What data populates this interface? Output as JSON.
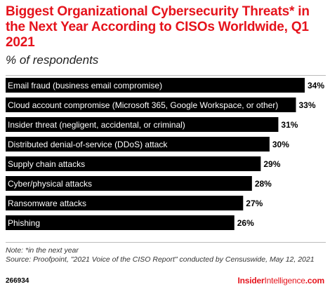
{
  "chart_data": {
    "type": "bar",
    "orientation": "horizontal",
    "title": "Biggest Organizational Cybersecurity Threats* in the Next Year According to CISOs Worldwide, Q1 2021",
    "subtitle": "% of respondents",
    "categories": [
      "Email fraud (business email compromise)",
      "Cloud account compromise (Microsoft 365, Google Workspace, or other)",
      "Insider threat (negligent, accidental, or criminal)",
      "Distributed denial-of-service (DDoS) attack",
      "Supply chain attacks",
      "Cyber/physical attacks",
      "Ransomware attacks",
      "Phishing"
    ],
    "values": [
      34,
      33,
      31,
      30,
      29,
      28,
      27,
      26
    ],
    "value_labels": [
      "34%",
      "33%",
      "31%",
      "30%",
      "29%",
      "28%",
      "27%",
      "26%"
    ],
    "bar_color": "#000000",
    "xlim": [
      0,
      34
    ],
    "grid": false,
    "legend": "none"
  },
  "note": "Note: *in the next year",
  "source": "Source: Proofpoint, \"2021 Voice of the CISO Report\" conducted by Censuswide, May 12, 2021",
  "footer": {
    "chart_id": "266934",
    "brand_bold": "Insider",
    "brand_light": "Intelligence",
    "brand_suffix": ".com"
  },
  "colors": {
    "accent": "#e5131c",
    "bar": "#000000",
    "bar_text": "#ffffff"
  }
}
